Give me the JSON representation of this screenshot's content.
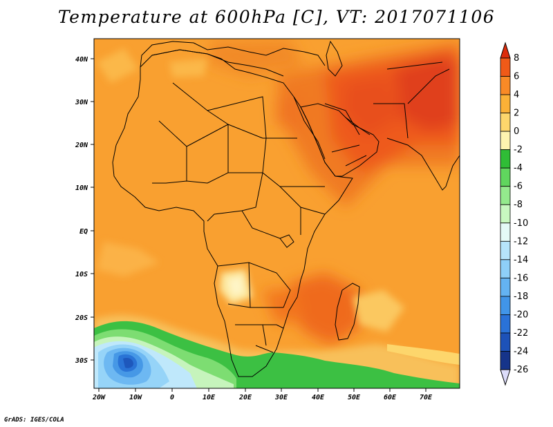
{
  "title": "Temperature at 600hPa [C], VT: 2017071106",
  "credit": "GrADS: IGES/COLA",
  "map": {
    "lon_labels": [
      "20W",
      "10W",
      "0",
      "10E",
      "20E",
      "30E",
      "40E",
      "50E",
      "60E",
      "70E"
    ],
    "lat_labels": [
      "40N",
      "30N",
      "20N",
      "10N",
      "EQ",
      "10S",
      "20S",
      "30S"
    ]
  },
  "colorbar": {
    "labels": [
      "8",
      "6",
      "4",
      "2",
      "0",
      "-2",
      "-4",
      "-6",
      "-8",
      "-10",
      "-12",
      "-14",
      "-16",
      "-18",
      "-20",
      "-22",
      "-24",
      "-26"
    ],
    "colors": [
      "#dd2c0c",
      "#f05a18",
      "#f98a26",
      "#fbb137",
      "#fdd66c",
      "#fef4b0",
      "#2fbd36",
      "#60d65e",
      "#94ea8d",
      "#c8f8c0",
      "#e4faf7",
      "#b6e4fb",
      "#8ecff8",
      "#64b3f2",
      "#4195e8",
      "#2a72d8",
      "#1d52b8",
      "#16348a",
      "#0d1e5e"
    ]
  }
}
